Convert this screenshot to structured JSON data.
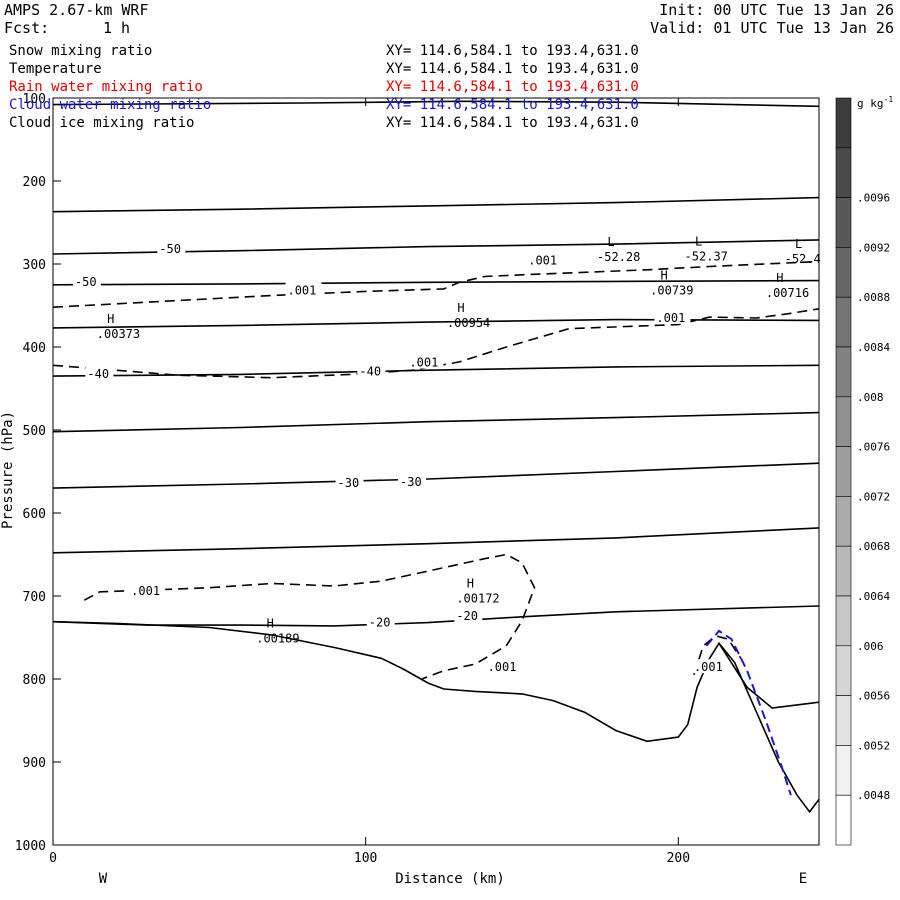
{
  "header": {
    "model": "AMPS 2.67-km WRF",
    "forecast_label": "Fcst:",
    "forecast_value": "1 h",
    "init": "Init: 00 UTC Tue 13 Jan 26",
    "valid": "Valid: 01 UTC Tue 13 Jan 26"
  },
  "fields": [
    {
      "name": "Snow mixing ratio",
      "xy": "XY= 114.6,584.1 to 193.4,631.0",
      "color": "#000000"
    },
    {
      "name": "Temperature",
      "xy": "XY= 114.6,584.1 to 193.4,631.0",
      "color": "#000000"
    },
    {
      "name": "Rain water mixing ratio",
      "xy": "XY= 114.6,584.1 to 193.4,631.0",
      "color": "#e00000"
    },
    {
      "name": "Cloud water mixing ratio",
      "xy": "XY= 114.6,584.1 to 193.4,631.0",
      "color": "#1a1acc"
    },
    {
      "name": "Cloud ice mixing ratio",
      "xy": "XY= 114.6,584.1 to 193.4,631.0",
      "color": "#000000"
    }
  ],
  "chart_data": {
    "type": "line",
    "xlabel": "Distance (km)",
    "ylabel": "Pressure (hPa)",
    "xlim": [
      0,
      245
    ],
    "ylim": [
      1000,
      100
    ],
    "x_ticks": [
      0,
      100,
      200
    ],
    "y_ticks": [
      100,
      200,
      300,
      400,
      500,
      600,
      700,
      800,
      900,
      1000
    ],
    "x_end_labels": {
      "left": "W",
      "right": "E"
    },
    "terrain": [
      [
        0,
        731
      ],
      [
        20,
        733
      ],
      [
        50,
        738
      ],
      [
        70,
        747
      ],
      [
        90,
        762
      ],
      [
        105,
        775
      ],
      [
        112,
        788
      ],
      [
        120,
        805
      ],
      [
        125,
        812
      ],
      [
        135,
        815
      ],
      [
        150,
        818
      ],
      [
        160,
        826
      ],
      [
        170,
        840
      ],
      [
        180,
        862
      ],
      [
        190,
        875
      ],
      [
        200,
        870
      ],
      [
        203,
        855
      ],
      [
        206,
        810
      ],
      [
        210,
        775
      ],
      [
        213,
        757
      ],
      [
        218,
        780
      ],
      [
        225,
        840
      ],
      [
        232,
        900
      ],
      [
        238,
        940
      ],
      [
        242,
        960
      ],
      [
        245,
        945
      ]
    ],
    "temperature_lines": [
      {
        "points": [
          [
            0,
            237
          ],
          [
            60,
            234
          ],
          [
            120,
            230
          ],
          [
            180,
            226
          ],
          [
            245,
            220
          ]
        ]
      },
      {
        "points": [
          [
            0,
            288
          ],
          [
            60,
            284
          ],
          [
            120,
            279
          ],
          [
            180,
            276
          ],
          [
            245,
            271
          ]
        ],
        "labels": [
          {
            "x": 34,
            "y": 283,
            "text": "-50"
          }
        ]
      },
      {
        "points": [
          [
            0,
            325
          ],
          [
            60,
            324
          ],
          [
            120,
            322
          ],
          [
            180,
            321
          ],
          [
            245,
            320
          ]
        ],
        "labels": [
          {
            "x": 7,
            "y": 323,
            "text": "-50"
          }
        ]
      },
      {
        "points": [
          [
            0,
            377
          ],
          [
            60,
            374
          ],
          [
            120,
            370
          ],
          [
            180,
            367
          ],
          [
            245,
            368
          ]
        ]
      },
      {
        "points": [
          [
            0,
            435
          ],
          [
            60,
            433
          ],
          [
            120,
            428
          ],
          [
            180,
            424
          ],
          [
            245,
            422
          ]
        ],
        "labels": [
          {
            "x": 11,
            "y": 434,
            "text": "-40"
          },
          {
            "x": 98,
            "y": 431,
            "text": "-40"
          }
        ]
      },
      {
        "points": [
          [
            0,
            502
          ],
          [
            60,
            497
          ],
          [
            120,
            490
          ],
          [
            180,
            485
          ],
          [
            245,
            479
          ]
        ]
      },
      {
        "points": [
          [
            0,
            570
          ],
          [
            60,
            565
          ],
          [
            120,
            559
          ],
          [
            180,
            550
          ],
          [
            245,
            540
          ]
        ],
        "labels": [
          {
            "x": 91,
            "y": 565,
            "text": "-30"
          },
          {
            "x": 111,
            "y": 564,
            "text": "-30"
          }
        ]
      },
      {
        "points": [
          [
            0,
            648
          ],
          [
            60,
            643
          ],
          [
            120,
            637
          ],
          [
            180,
            630
          ],
          [
            245,
            618
          ]
        ]
      },
      {
        "points": [
          [
            0,
            731
          ],
          [
            30,
            735
          ],
          [
            60,
            735
          ],
          [
            90,
            736
          ],
          [
            120,
            732
          ],
          [
            150,
            725
          ],
          [
            180,
            719
          ],
          [
            245,
            712
          ]
        ],
        "labels": [
          {
            "x": 101,
            "y": 733,
            "text": "-20"
          },
          {
            "x": 129,
            "y": 725,
            "text": "-20"
          }
        ]
      },
      {
        "points": [
          [
            213,
            757
          ],
          [
            222,
            810
          ],
          [
            230,
            835
          ],
          [
            245,
            828
          ]
        ]
      },
      {
        "points": [
          [
            0,
            108
          ],
          [
            80,
            106
          ],
          [
            130,
            104
          ],
          [
            180,
            105
          ],
          [
            245,
            110
          ]
        ]
      }
    ],
    "temperature_lows": [
      {
        "x": 174,
        "y": 293,
        "text": "-52.28"
      },
      {
        "x": 202,
        "y": 292,
        "text": "-52.37"
      },
      {
        "x": 234,
        "y": 295,
        "text": "-52.4"
      }
    ],
    "snow_contours": [
      {
        "points": [
          [
            0,
            352
          ],
          [
            30,
            346
          ],
          [
            70,
            338
          ],
          [
            100,
            333
          ],
          [
            125,
            330
          ],
          [
            130,
            322
          ],
          [
            138,
            315
          ],
          [
            150,
            313
          ],
          [
            170,
            310
          ],
          [
            190,
            307
          ],
          [
            210,
            303
          ],
          [
            245,
            297
          ]
        ]
      },
      {
        "points": [
          [
            0,
            422
          ],
          [
            20,
            428
          ],
          [
            40,
            434
          ],
          [
            70,
            437
          ],
          [
            95,
            433
          ],
          [
            115,
            428
          ],
          [
            130,
            418
          ],
          [
            145,
            400
          ],
          [
            165,
            378
          ],
          [
            185,
            375
          ],
          [
            200,
            373
          ],
          [
            210,
            364
          ],
          [
            225,
            365
          ],
          [
            235,
            360
          ],
          [
            245,
            354
          ]
        ]
      },
      {
        "points": [
          [
            10,
            705
          ],
          [
            15,
            695
          ],
          [
            30,
            693
          ],
          [
            50,
            690
          ],
          [
            70,
            685
          ],
          [
            90,
            688
          ],
          [
            105,
            682
          ],
          [
            120,
            670
          ],
          [
            138,
            655
          ],
          [
            145,
            650
          ],
          [
            150,
            660
          ],
          [
            154,
            690
          ],
          [
            150,
            730
          ],
          [
            145,
            760
          ],
          [
            135,
            782
          ],
          [
            125,
            790
          ],
          [
            118,
            800
          ]
        ]
      },
      {
        "points": [
          [
            205,
            795
          ],
          [
            208,
            760
          ],
          [
            212,
            748
          ],
          [
            216,
            752
          ],
          [
            220,
            775
          ]
        ]
      }
    ],
    "snow_labels": [
      {
        "x": 75,
        "y": 333,
        "text": ".001"
      },
      {
        "x": 152,
        "y": 297,
        "text": ".001"
      },
      {
        "x": 193,
        "y": 366,
        "text": ".001"
      },
      {
        "x": 114,
        "y": 420,
        "text": ".001"
      },
      {
        "x": 25,
        "y": 695,
        "text": ".001"
      },
      {
        "x": 139,
        "y": 787,
        "text": ".001"
      },
      {
        "x": 205,
        "y": 787,
        "text": ".001"
      }
    ],
    "snow_highs": [
      {
        "x": 14,
        "y": 383,
        "text": ".00373"
      },
      {
        "x": 126,
        "y": 370,
        "text": ".00954"
      },
      {
        "x": 191,
        "y": 331,
        "text": ".00739"
      },
      {
        "x": 228,
        "y": 334,
        "text": ".00716"
      },
      {
        "x": 129,
        "y": 702,
        "text": ".00172"
      },
      {
        "x": 65,
        "y": 750,
        "text": ".00189"
      }
    ],
    "cloud_water_contour": {
      "points": [
        [
          209,
          760
        ],
        [
          213,
          742
        ],
        [
          217,
          752
        ],
        [
          222,
          790
        ],
        [
          228,
          850
        ],
        [
          233,
          905
        ],
        [
          236,
          940
        ]
      ]
    },
    "colorbar": {
      "unit": "g kg",
      "unit_exponent": "-1",
      "ticks": [
        ".0096",
        ".0092",
        ".0088",
        ".0084",
        ".008",
        ".0076",
        ".0072",
        ".0068",
        ".0064",
        ".006",
        ".0056",
        ".0052",
        ".0048"
      ]
    }
  }
}
